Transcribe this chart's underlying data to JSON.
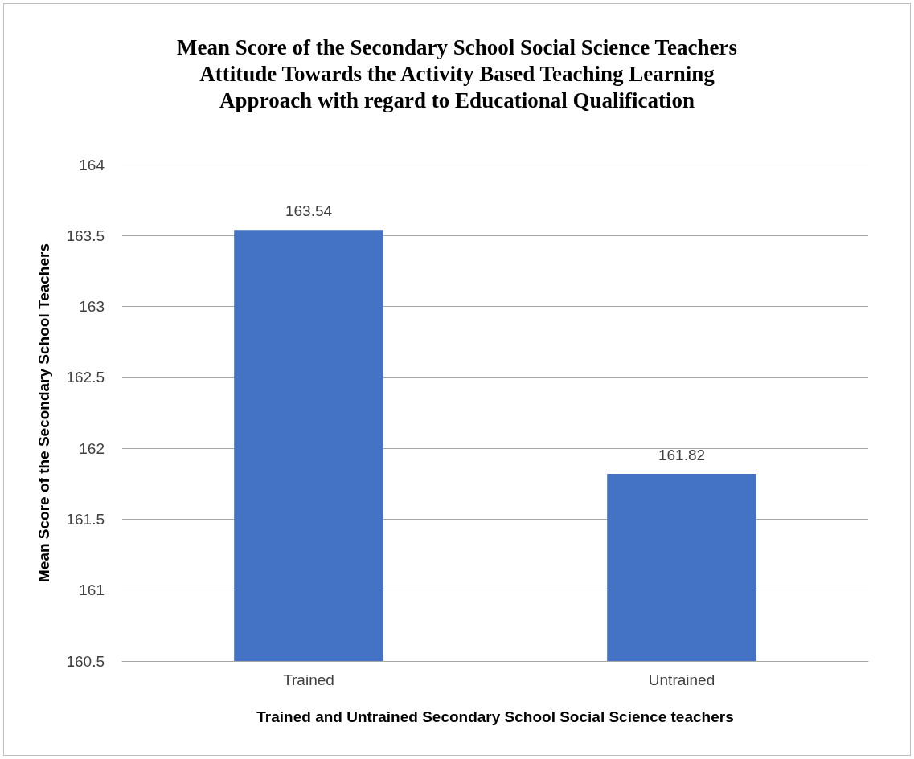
{
  "chart_data": {
    "type": "bar",
    "title": "Mean Score of the Secondary School Social Science Teachers\nAttitude Towards the Activity Based Teaching Learning\nApproach with regard to Educational Qualification",
    "xlabel": "Trained and Untrained Secondary School Social Science teachers",
    "ylabel": "Mean Score of the Secondary School Teachers",
    "categories": [
      "Trained",
      "Untrained"
    ],
    "values": [
      163.54,
      161.82
    ],
    "color": "#4472c4",
    "ylim": [
      160.5,
      164
    ],
    "yticks": [
      160.5,
      161,
      161.5,
      162,
      162.5,
      163,
      163.5,
      164
    ],
    "grid": "y",
    "data_labels": true
  }
}
